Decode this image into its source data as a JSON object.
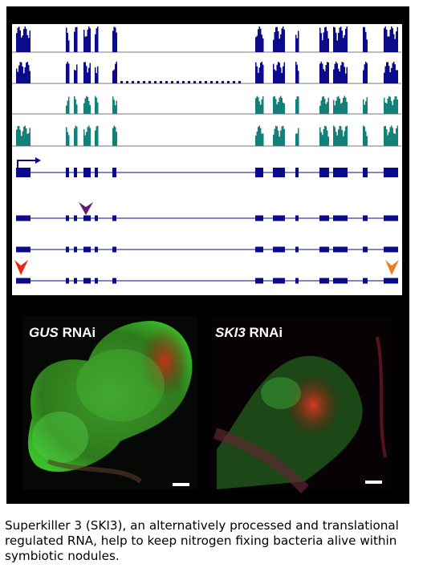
{
  "panels": [
    {
      "gene": "GUS",
      "label": "RNAi"
    },
    {
      "gene": "SKI3",
      "label": "RNAi"
    }
  ],
  "caption": "Superkiller 3 (SKI3), an alternatively processed and translational regulated RNA, help to keep nitrogen fixing bacteria alive within symbiotic nodules."
}
